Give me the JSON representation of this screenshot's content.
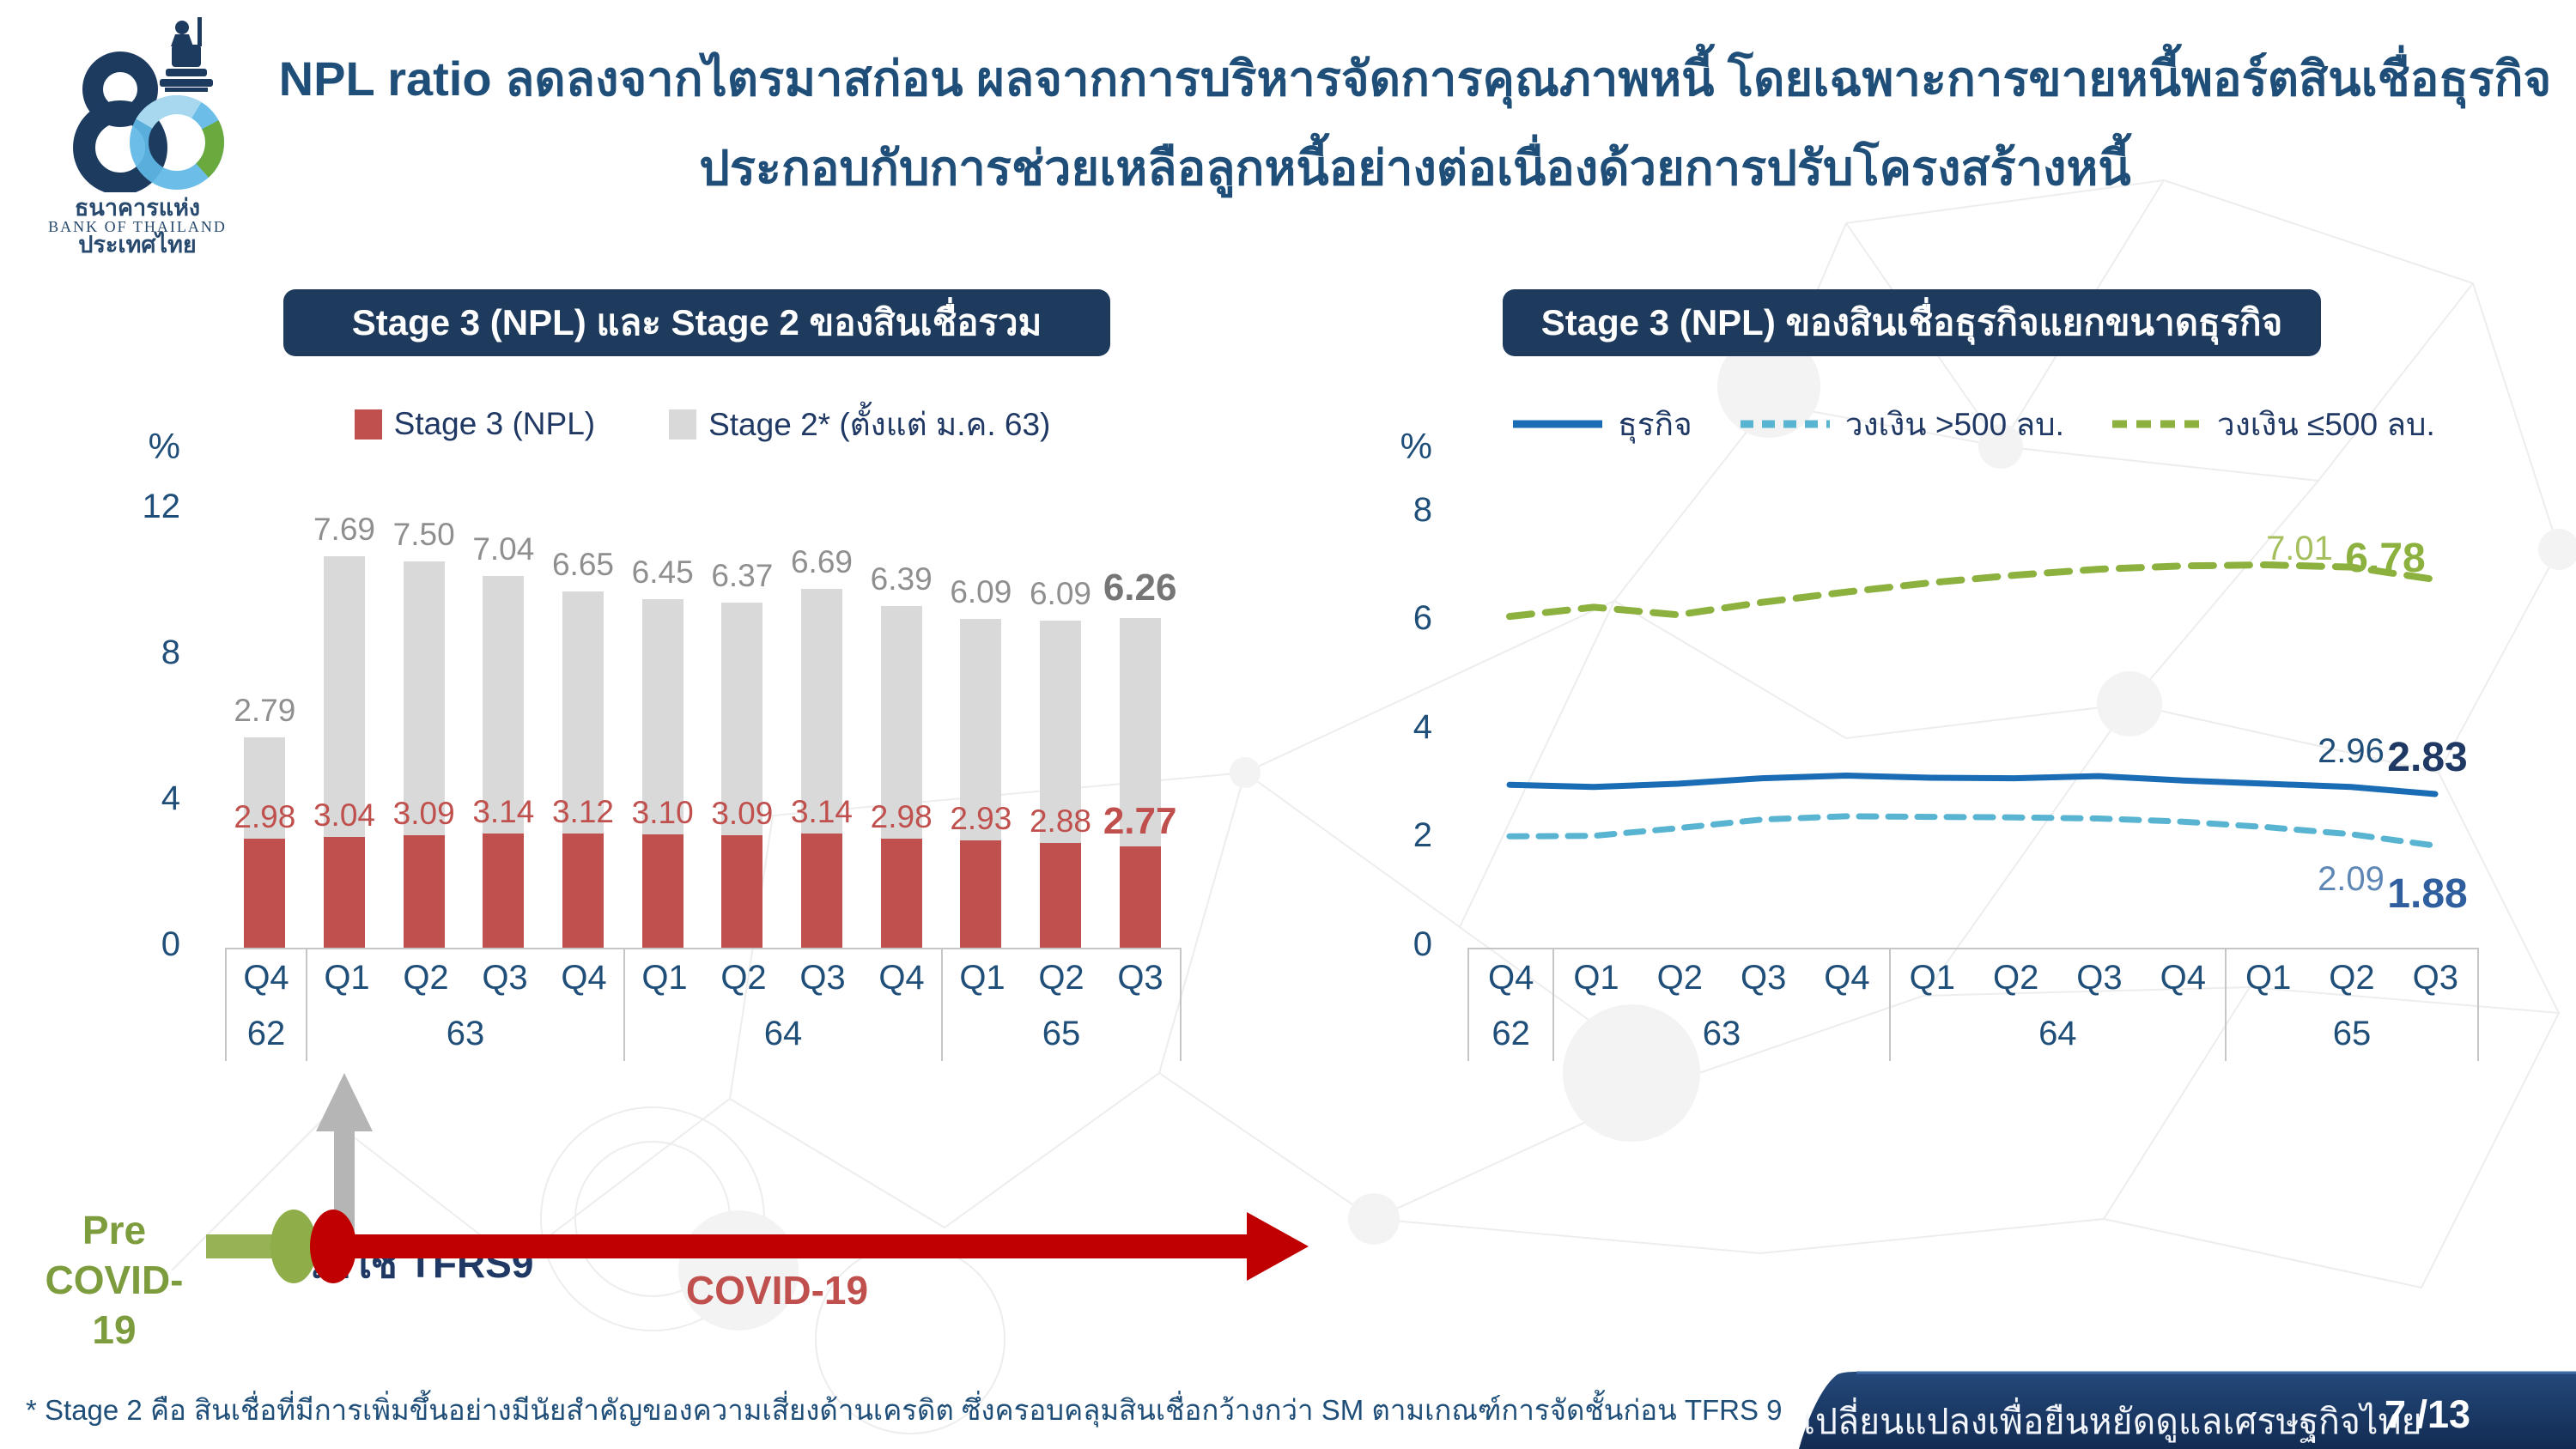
{
  "header": {
    "title_line1": "NPL ratio ลดลงจากไตรมาสก่อน ผลจากการบริหารจัดการคุณภาพหนี้ โดยเฉพาะการขายหนี้พอร์ตสินเชื่อธุรกิจ",
    "title_line2": "ประกอบกับการช่วยเหลือลูกหนี้อย่างต่อเนื่องด้วยการปรับโครงสร้างหนี้"
  },
  "logo": {
    "anniversary_number": "80",
    "thai_name": "ธนาคารแห่งประเทศไทย",
    "eng_name": "BANK OF THAILAND"
  },
  "annotations": {
    "tfrs9_label": "เริ่มใช้ TFRS9",
    "pre_covid_line1": "Pre",
    "pre_covid_line2": "COVID-19",
    "covid_label": "COVID-19"
  },
  "footer": {
    "footnote": "* Stage 2 คือ สินเชื่อที่มีการเพิ่มขึ้นอย่างมีนัยสำคัญของความเสี่ยงด้านเครดิต ซึ่งครอบคลุมสินเชื่อกว้างกว่า SM ตามเกณฑ์การจัดชั้นก่อน TFRS 9",
    "slogan": "เปลี่ยนแปลงเพื่อยืนหยัดดูแลเศรษฐกิจไทย",
    "page": "7 /13"
  },
  "colors": {
    "navy_text": "#1f4e79",
    "navy_dark": "#1f3864",
    "panel_header_bg": "#1e3a5c",
    "stage3_red": "#c0504d",
    "stage2_gray": "#d9d9d9",
    "gray_value_label": "#8f8f8f",
    "business_blue": "#1a6cb5",
    "over500_lightblue": "#58b4d1",
    "under500_green": "#8cb13f",
    "pre_covid_green": "#7d9c3e",
    "covid_red": "#c00000",
    "covid_text_red": "#c0504d",
    "footer_bar_navy": "#16355e",
    "tfrs9_arrow_gray": "#b5b5b5"
  },
  "chart_data": [
    {
      "type": "bar",
      "stacked": true,
      "title": "Stage 3 (NPL) และ Stage 2 ของสินเชื่อรวม",
      "ylabel": "%",
      "yticks": [
        0,
        4,
        8,
        12
      ],
      "ylim": [
        0,
        12.8
      ],
      "grid": false,
      "legend_position": "top",
      "categories": [
        "Q4",
        "Q1",
        "Q2",
        "Q3",
        "Q4",
        "Q1",
        "Q2",
        "Q3",
        "Q4",
        "Q1",
        "Q2",
        "Q3"
      ],
      "year_groups": [
        {
          "year": "62",
          "count": 1
        },
        {
          "year": "63",
          "count": 4
        },
        {
          "year": "64",
          "count": 4
        },
        {
          "year": "65",
          "count": 3
        }
      ],
      "series": [
        {
          "name": "Stage 3 (NPL)",
          "color": "#c0504d",
          "values": [
            2.98,
            3.04,
            3.09,
            3.14,
            3.12,
            3.1,
            3.09,
            3.14,
            2.98,
            2.93,
            2.88,
            2.77
          ]
        },
        {
          "name": "Stage 2* (ตั้งแต่ ม.ค. 63)",
          "color": "#d9d9d9",
          "values": [
            2.79,
            7.69,
            7.5,
            7.04,
            6.65,
            6.45,
            6.37,
            6.69,
            6.39,
            6.09,
            6.09,
            6.26
          ]
        }
      ]
    },
    {
      "type": "line",
      "title": "Stage 3 (NPL) ของสินเชื่อธุรกิจแยกขนาดธุรกิจ",
      "ylabel": "%",
      "yticks": [
        0,
        2,
        4,
        6,
        8
      ],
      "ylim": [
        0,
        8.6
      ],
      "grid": false,
      "legend_position": "top",
      "categories": [
        "Q4",
        "Q1",
        "Q2",
        "Q3",
        "Q4",
        "Q1",
        "Q2",
        "Q3",
        "Q4",
        "Q1",
        "Q2",
        "Q3"
      ],
      "year_groups": [
        {
          "year": "62",
          "count": 1
        },
        {
          "year": "63",
          "count": 4
        },
        {
          "year": "64",
          "count": 4
        },
        {
          "year": "65",
          "count": 3
        }
      ],
      "series": [
        {
          "name": "ธุรกิจ",
          "color": "#1a6cb5",
          "style": "solid",
          "dash": "",
          "values": [
            3.0,
            2.96,
            3.02,
            3.12,
            3.17,
            3.13,
            3.12,
            3.16,
            3.08,
            3.02,
            2.96,
            2.83
          ],
          "point_labels": {
            "10": "2.96",
            "11": "2.83"
          }
        },
        {
          "name": "วงเงิน >500 ลบ.",
          "color": "#58b4d1",
          "style": "dashed",
          "dash": "20 14",
          "values": [
            2.05,
            2.06,
            2.2,
            2.36,
            2.42,
            2.41,
            2.4,
            2.38,
            2.32,
            2.22,
            2.09,
            1.88
          ],
          "point_labels": {
            "10": "2.09",
            "11": "1.88"
          }
        },
        {
          "name": "วงเงิน ≤500 ลบ.",
          "color": "#8cb13f",
          "style": "dashed",
          "dash": "26 16",
          "values": [
            6.1,
            6.27,
            6.13,
            6.36,
            6.55,
            6.72,
            6.86,
            6.97,
            7.03,
            7.05,
            7.01,
            6.78
          ],
          "point_labels": {
            "10": "7.01",
            "11": "6.78"
          }
        }
      ]
    }
  ]
}
